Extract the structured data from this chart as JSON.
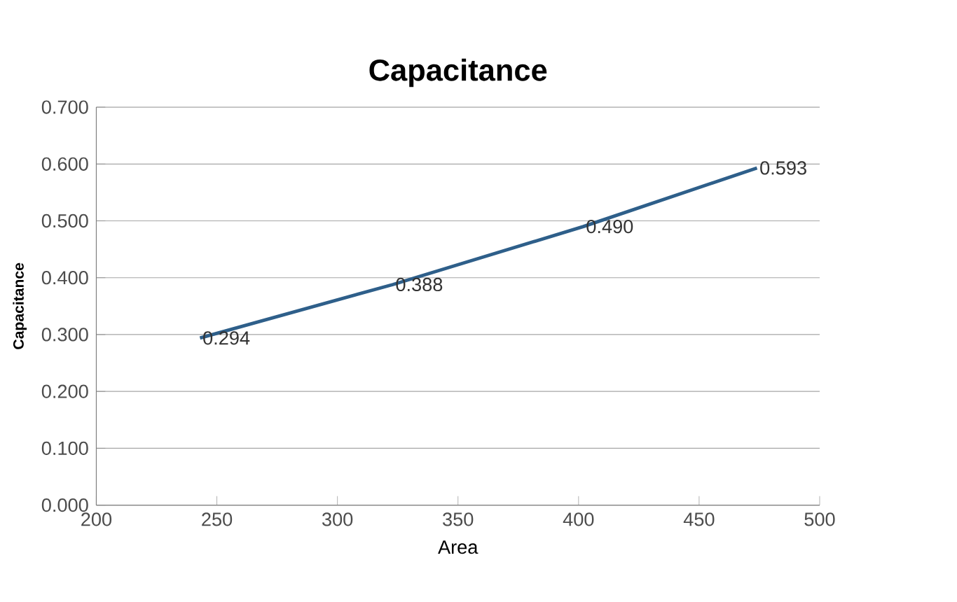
{
  "chart_data": {
    "type": "line",
    "title": "Capacitance",
    "xlabel": "Area",
    "ylabel": "Capacitance",
    "x": [
      243,
      323,
      402,
      474
    ],
    "series": [
      {
        "color": "#2e5f8a",
        "values": [
          0.294,
          0.388,
          0.49,
          0.593
        ],
        "value_labels": [
          "0.294",
          "0.388",
          "0.490",
          "0.593"
        ]
      }
    ],
    "grid": "y",
    "marker": "none",
    "line_style": "solid",
    "xlim": [
      200,
      500
    ],
    "xticks": [
      200,
      250,
      300,
      350,
      400,
      450,
      500
    ],
    "ylim": [
      0,
      0.7
    ],
    "yticks": [
      {
        "value": 0,
        "label": "0.000"
      },
      {
        "value": 0.1,
        "label": "0.100"
      },
      {
        "value": 0.2,
        "label": "0.200"
      },
      {
        "value": 0.3,
        "label": "0.300"
      },
      {
        "value": 0.4,
        "label": "0.400"
      },
      {
        "value": 0.5,
        "label": "0.500"
      },
      {
        "value": 0.6,
        "label": "0.600"
      },
      {
        "value": 0.7,
        "label": "0.700"
      }
    ]
  }
}
